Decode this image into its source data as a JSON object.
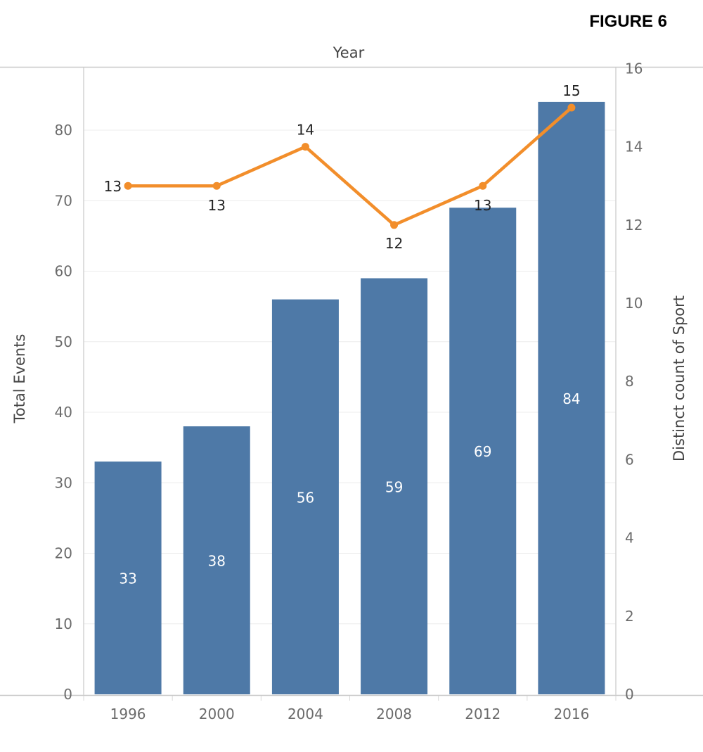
{
  "figure_label": "FIGURE 6",
  "chart_data": {
    "type": "bar",
    "x_title": "Year",
    "categories": [
      "1996",
      "2000",
      "2004",
      "2008",
      "2012",
      "2016"
    ],
    "series": [
      {
        "chart_kind": "bar",
        "axis": "left",
        "values": [
          33,
          38,
          56,
          59,
          69,
          84
        ],
        "labels": [
          "33",
          "38",
          "56",
          "59",
          "69",
          "84"
        ],
        "color": "#4e79a7"
      },
      {
        "chart_kind": "line",
        "axis": "right",
        "values": [
          13,
          13,
          14,
          12,
          13,
          15
        ],
        "labels": [
          "13",
          "13",
          "14",
          "12",
          "13",
          "15"
        ],
        "color": "#f28e2b"
      }
    ],
    "y_left": {
      "label": "Total Events",
      "ylim": [
        0,
        88
      ],
      "ticks": [
        0,
        10,
        20,
        30,
        40,
        50,
        60,
        70,
        80
      ],
      "tick_labels": [
        "0",
        "10",
        "20",
        "30",
        "40",
        "50",
        "60",
        "70",
        "80"
      ]
    },
    "y_right": {
      "label": "Distinct count of Sport",
      "ylim": [
        0,
        16
      ],
      "ticks": [
        0,
        2,
        4,
        6,
        8,
        10,
        12,
        14,
        16
      ],
      "tick_labels": [
        "0",
        "2",
        "4",
        "6",
        "8",
        "10",
        "12",
        "14",
        "16"
      ]
    },
    "grid": true,
    "legend": "none"
  }
}
